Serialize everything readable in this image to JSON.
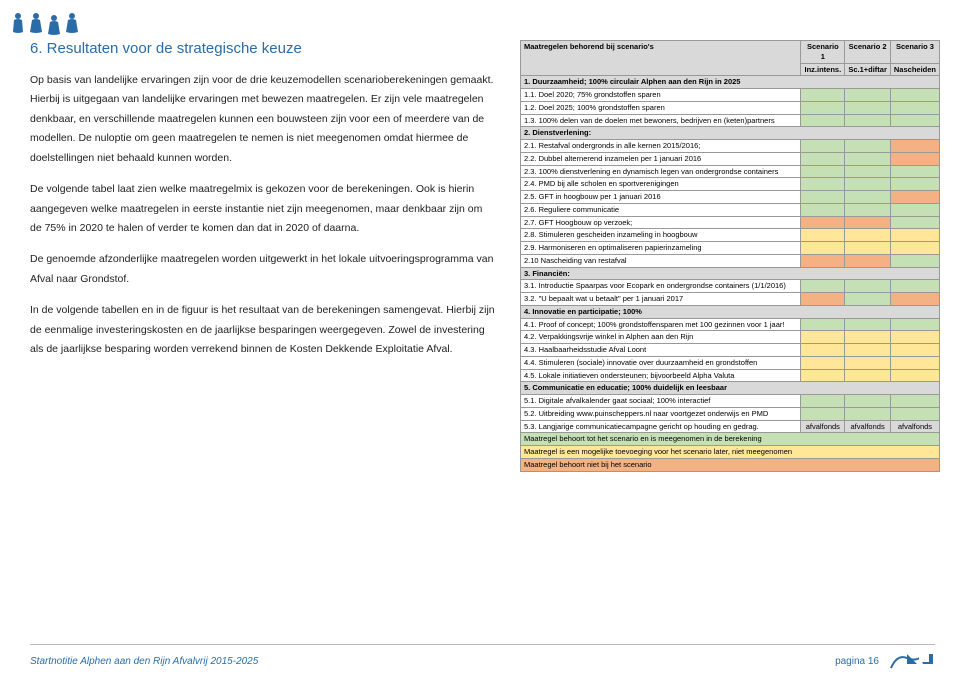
{
  "colors": {
    "accent": "#2a6ca8",
    "text": "#222222",
    "headerBg": "#d9d9d9",
    "green": "#c5e0b4",
    "yellow": "#ffe699",
    "red": "#f4b183",
    "border": "#999999",
    "afvalfonds": "#d9d9d9"
  },
  "title": "6.  Resultaten voor de strategische keuze",
  "paragraphs": {
    "p1": "Op basis van landelijke ervaringen zijn voor de drie keuzemodellen scenarioberekeningen gemaakt. Hierbij is uitgegaan van landelijke ervaringen met bewezen maatregelen. Er zijn vele maatregelen denkbaar, en verschillende maatregelen kunnen een bouwsteen zijn voor een of meerdere van de modellen. De nuloptie om geen maatregelen te nemen is niet meegenomen omdat hiermee de doelstellingen niet behaald kunnen worden.",
    "p2": "De volgende tabel laat zien welke maatregelmix is gekozen voor de berekeningen. Ook is hierin aangegeven welke maatregelen in eerste instantie niet zijn meegenomen, maar denkbaar zijn om de 75% in 2020 te halen of verder te komen dan dat in 2020 of daarna.",
    "p3": "De genoemde afzonderlijke maatregelen worden uitgewerkt in het lokale uitvoeringsprogramma van Afval naar Grondstof.",
    "p4": "In de volgende tabellen en in de figuur is het resultaat van de berekeningen samengevat. Hierbij zijn de eenmalige investeringskosten en de jaarlijkse besparingen weergegeven. Zowel de investering als de jaarlijkse besparing worden verrekend binnen de Kosten Dekkende Exploitatie Afval."
  },
  "table": {
    "headerMain": "Maatregelen behorend bij scenario's",
    "scenarios": [
      "Scenario 1",
      "Scenario 2",
      "Scenario 3"
    ],
    "subheaders": [
      "Inz.intens.",
      "Sc.1+diftar",
      "Nascheiden"
    ],
    "rows": [
      {
        "type": "cat",
        "label": "1.  Duurzaamheid; 100% circulair Alphen aan den Rijn in 2025"
      },
      {
        "type": "item",
        "label": "1.1. Doel 2020; 75% grondstoffen sparen",
        "cells": [
          "green",
          "green",
          "green"
        ]
      },
      {
        "type": "item",
        "label": "1.2. Doel 2025; 100% grondstoffen sparen",
        "cells": [
          "green",
          "green",
          "green"
        ]
      },
      {
        "type": "item",
        "label": "1.3. 100% delen van de doelen met bewoners, bedrijven en (keten)partners",
        "cells": [
          "green",
          "green",
          "green"
        ]
      },
      {
        "type": "cat",
        "label": "2.  Dienstverlening:"
      },
      {
        "type": "item",
        "label": "2.1. Restafval ondergronds in alle kernen 2015/2016;",
        "cells": [
          "green",
          "green",
          "red"
        ]
      },
      {
        "type": "item",
        "label": "2.2. Dubbel alternerend inzamelen per 1 januari 2016",
        "cells": [
          "green",
          "green",
          "red"
        ]
      },
      {
        "type": "item",
        "label": "2.3. 100% dienstverlening en dynamisch legen van ondergrondse containers",
        "cells": [
          "green",
          "green",
          "green"
        ]
      },
      {
        "type": "item",
        "label": "2.4. PMD bij alle scholen en sportverenigingen",
        "cells": [
          "green",
          "green",
          "green"
        ]
      },
      {
        "type": "item",
        "label": "2.5. GFT in hoogbouw per 1 januari 2016",
        "cells": [
          "green",
          "green",
          "red"
        ]
      },
      {
        "type": "item",
        "label": "2.6. Reguliere communicatie",
        "cells": [
          "green",
          "green",
          "green"
        ]
      },
      {
        "type": "item",
        "label": "2.7. GFT Hoogbouw op verzoek;",
        "cells": [
          "red",
          "red",
          "green"
        ]
      },
      {
        "type": "item",
        "label": "2.8. Stimuleren gescheiden inzameling in hoogbouw",
        "cells": [
          "yellow",
          "yellow",
          "yellow"
        ]
      },
      {
        "type": "item",
        "label": "2.9. Harmoniseren en optimaliseren papierinzameling",
        "cells": [
          "yellow",
          "yellow",
          "yellow"
        ]
      },
      {
        "type": "item",
        "label": "2.10 Nascheiding van restafval",
        "cells": [
          "red",
          "red",
          "green"
        ]
      },
      {
        "type": "cat",
        "label": "3.  Financiën:"
      },
      {
        "type": "item",
        "label": "3.1. Introductie Spaarpas voor Ecopark en ondergrondse containers (1/1/2016)",
        "cells": [
          "green",
          "green",
          "green"
        ]
      },
      {
        "type": "item",
        "label": "3.2. \"U bepaalt wat u betaalt\" per 1 januari 2017",
        "cells": [
          "red",
          "green",
          "red"
        ]
      },
      {
        "type": "cat",
        "label": "4.  Innovatie en participatie; 100%"
      },
      {
        "type": "item",
        "label": "4.1. Proof of concept; 100% grondstoffensparen met 100 gezinnen voor 1 jaar!",
        "cells": [
          "green",
          "green",
          "green"
        ]
      },
      {
        "type": "item",
        "label": "4.2. Verpakkingsvrije winkel in Alphen aan den Rijn",
        "cells": [
          "yellow",
          "yellow",
          "yellow"
        ]
      },
      {
        "type": "item",
        "label": "4.3. Haalbaarheidsstudie Afval Loont",
        "cells": [
          "yellow",
          "yellow",
          "yellow"
        ]
      },
      {
        "type": "item",
        "label": "4.4. Stimuleren (sociale) innovatie over duurzaamheid en grondstoffen",
        "cells": [
          "yellow",
          "yellow",
          "yellow"
        ]
      },
      {
        "type": "item",
        "label": "4.5. Lokale initiatieven ondersteunen; bijvoorbeeld Alpha Valuta",
        "cells": [
          "yellow",
          "yellow",
          "yellow"
        ]
      },
      {
        "type": "cat",
        "label": "5.  Communicatie en educatie; 100% duidelijk en leesbaar"
      },
      {
        "type": "item",
        "label": "5.1. Digitale afvalkalender gaat sociaal; 100% interactief",
        "cells": [
          "green",
          "green",
          "green"
        ]
      },
      {
        "type": "item",
        "label": "5.2. Uitbreiding www.puinscheppers.nl naar voortgezet onderwijs en PMD",
        "cells": [
          "green",
          "green",
          "green"
        ]
      },
      {
        "type": "afval",
        "label": "5.3. Langjarige communicatiecampagne gericht op houding en gedrag.",
        "cells": [
          "afvalfonds",
          "afvalfonds",
          "afvalfonds"
        ]
      }
    ],
    "legend": {
      "green": "Maatregel behoort tot het scenario en is meegenomen in de berekening",
      "yellow": "Maatregel is een mogelijke toevoeging voor het scenario later, niet meegenomen",
      "red": "Maatregel behoort niet bij het scenario"
    },
    "afvalLabel": "afvalfonds"
  },
  "footer": {
    "left": "Startnotitie Alphen aan den Rijn Afvalvrij 2015-2025",
    "page": "pagina 16"
  }
}
